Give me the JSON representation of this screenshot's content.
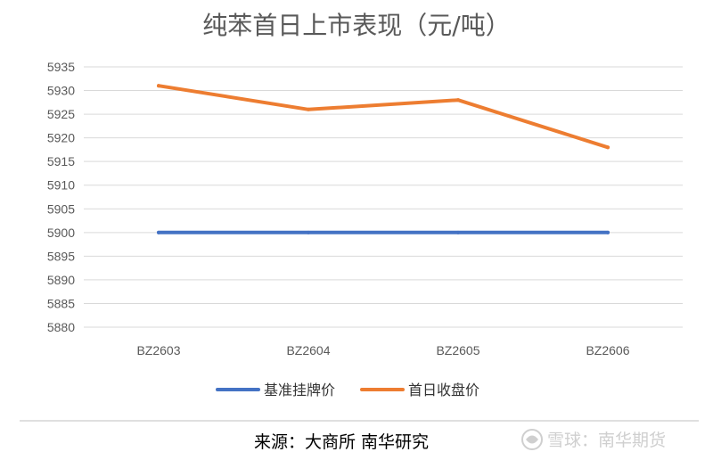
{
  "chart_data": {
    "type": "line",
    "title": "纯苯首日上市表现（元/吨）",
    "categories": [
      "BZ2603",
      "BZ2604",
      "BZ2605",
      "BZ2606"
    ],
    "series": [
      {
        "name": "基准挂牌价",
        "values": [
          5900,
          5900,
          5900,
          5900
        ],
        "color": "#4472C4"
      },
      {
        "name": "首日收盘价",
        "values": [
          5931,
          5926,
          5928,
          5918
        ],
        "color": "#ED7D31"
      }
    ],
    "ylim": [
      5880,
      5935
    ],
    "yticks": [
      5935,
      5930,
      5925,
      5920,
      5915,
      5910,
      5905,
      5900,
      5895,
      5890,
      5885,
      5880
    ],
    "grid": true,
    "legend": "bottom"
  },
  "footer": {
    "source": "来源：大商所 南华研究",
    "watermark": "雪球：南华期货",
    "watermark_icon": "snowball-logo-icon"
  }
}
